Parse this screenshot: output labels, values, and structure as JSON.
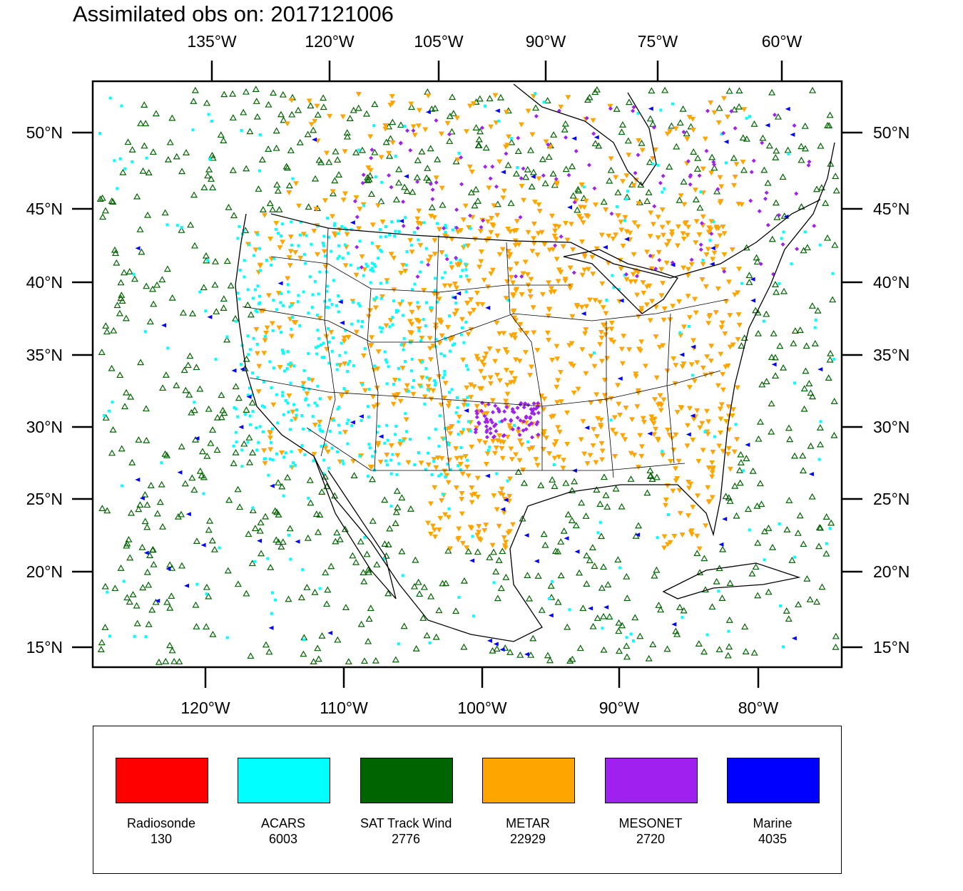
{
  "title": "Assimilated obs on: 2017121006",
  "axes": {
    "top_ticks": [
      "135°W",
      "120°W",
      "105°W",
      "90°W",
      "75°W",
      "60°W"
    ],
    "bottom_ticks": [
      "120°W",
      "110°W",
      "100°W",
      "90°W",
      "80°W"
    ],
    "left_ticks": [
      "50°N",
      "45°N",
      "40°N",
      "35°N",
      "30°N",
      "25°N",
      "20°N",
      "15°N"
    ],
    "right_ticks": [
      "50°N",
      "45°N",
      "40°N",
      "35°N",
      "30°N",
      "25°N",
      "20°N",
      "15°N"
    ]
  },
  "legend": [
    {
      "label": "Radiosonde",
      "count": "130",
      "color": "#ff0000",
      "marker": "circle"
    },
    {
      "label": "ACARS",
      "count": "6003",
      "color": "#00ffff",
      "marker": "square"
    },
    {
      "label": "SAT Track Wind",
      "count": "2776",
      "color": "#006400",
      "marker": "triangle-up"
    },
    {
      "label": "METAR",
      "count": "22929",
      "color": "#ffa500",
      "marker": "triangle-down"
    },
    {
      "label": "MESONET",
      "count": "2720",
      "color": "#a020f0",
      "marker": "diamond"
    },
    {
      "label": "Marine",
      "count": "4035",
      "color": "#0000ff",
      "marker": "triangle-left"
    }
  ]
}
